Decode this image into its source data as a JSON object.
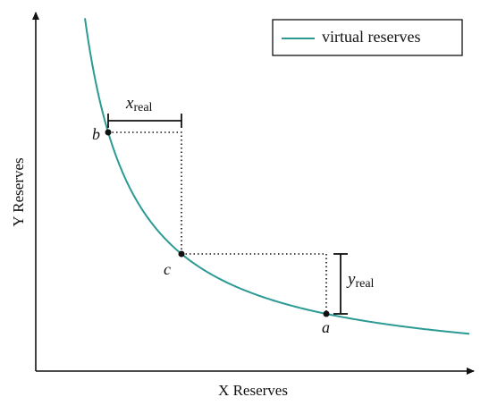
{
  "legend": {
    "label": "virtual reserves"
  },
  "axes": {
    "x_title": "X Reserves",
    "y_title": "Y Reserves"
  },
  "curve_color": "#2a9a93",
  "points": [
    {
      "label": "b"
    },
    {
      "label": "c"
    },
    {
      "label": "a"
    }
  ],
  "brackets": {
    "x_real": {
      "symbol": "x",
      "subscript": "real"
    },
    "y_real": {
      "symbol": "y",
      "subscript": "real"
    }
  }
}
